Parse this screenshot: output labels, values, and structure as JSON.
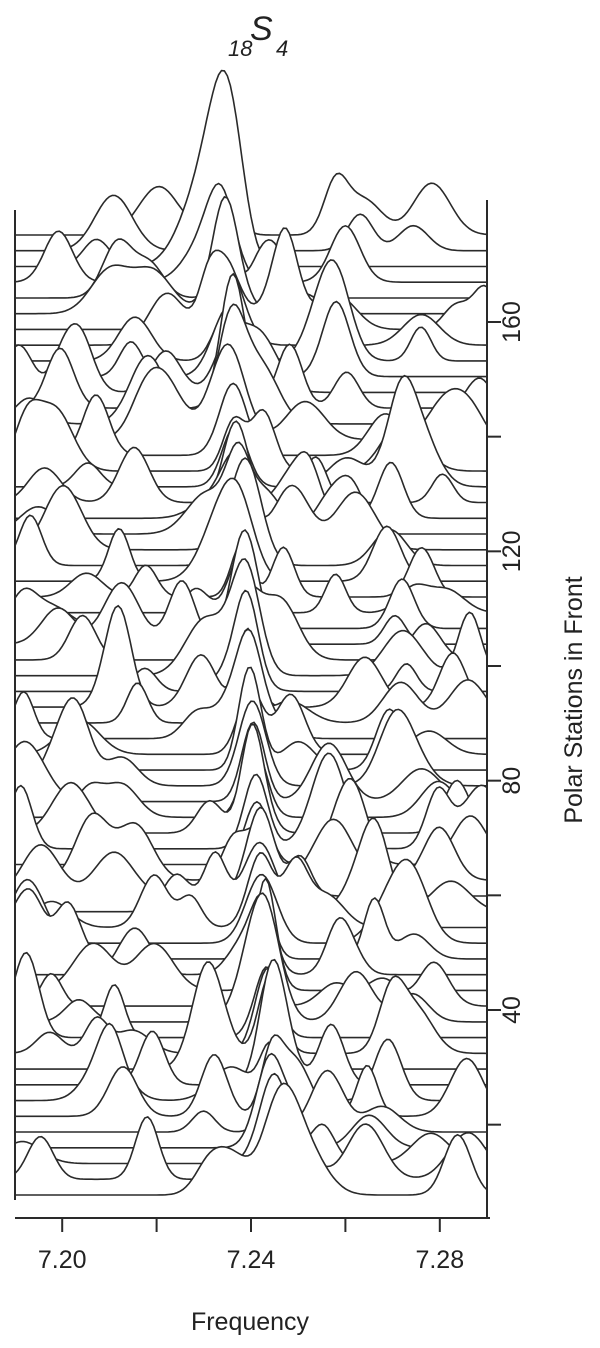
{
  "chart_data": {
    "type": "line",
    "title_main": "S",
    "title_sub_left": "18",
    "title_sub_right": "4",
    "xlabel": "Frequency",
    "ylabel": "Polar Stations in Front",
    "xlim": [
      7.19,
      7.29
    ],
    "ylim": [
      0,
      180
    ],
    "x_ticks": [
      7.2,
      7.24,
      7.28
    ],
    "x_tick_labels": [
      "7.20",
      "7.24",
      "7.28"
    ],
    "y_ticks": [
      40,
      80,
      120,
      160
    ],
    "y_tick_labels": [
      "40",
      "80",
      "120",
      "160"
    ],
    "traces_described": "stacked amplitude spectra, one per polar station, strongest peak near 7.247",
    "colors": {
      "line": "#2a2a2a",
      "background": "#ffffff"
    }
  }
}
